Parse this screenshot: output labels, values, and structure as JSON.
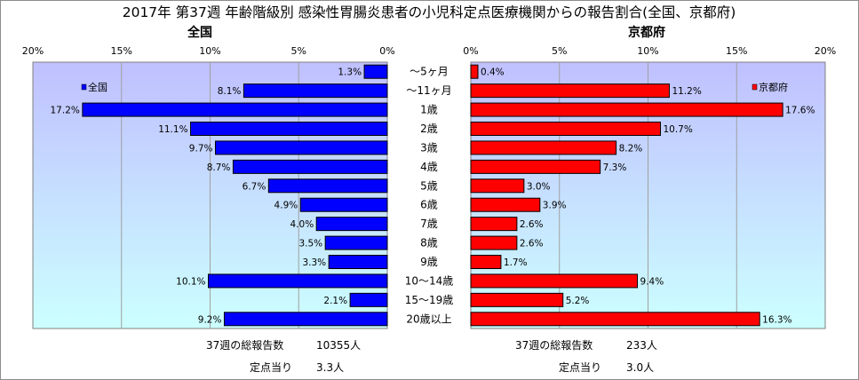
{
  "title": "2017年 第37週 年齢階級別 感染性胃腸炎患者の小児科定点医療機関からの報告割合(全国、京都府)",
  "categories": [
    "～5ヶ月",
    "～11ヶ月",
    "1歳",
    "2歳",
    "3歳",
    "4歳",
    "5歳",
    "6歳",
    "7歳",
    "8歳",
    "9歳",
    "10～14歳",
    "15～19歳",
    "20歳以上"
  ],
  "colors": {
    "nation": "#0000ff",
    "kyoto": "#ff0000",
    "plot_bg_top": "#c0c0ff",
    "plot_bg_bottom": "#ccffff"
  },
  "chart_data": [
    {
      "type": "bar",
      "title": "全国",
      "orientation": "horizontal",
      "direction": "reversed",
      "categories": [
        "～5ヶ月",
        "～11ヶ月",
        "1歳",
        "2歳",
        "3歳",
        "4歳",
        "5歳",
        "6歳",
        "7歳",
        "8歳",
        "9歳",
        "10～14歳",
        "15～19歳",
        "20歳以上"
      ],
      "series": [
        {
          "name": "全国",
          "values": [
            1.3,
            8.1,
            17.2,
            11.1,
            9.7,
            8.7,
            6.7,
            4.9,
            4.0,
            3.5,
            3.3,
            10.1,
            2.1,
            9.2
          ]
        }
      ],
      "value_labels": [
        "1.3%",
        "8.1%",
        "17.2%",
        "11.1%",
        "9.7%",
        "8.7%",
        "6.7%",
        "4.9%",
        "4.0%",
        "3.5%",
        "3.3%",
        "10.1%",
        "2.1%",
        "9.2%"
      ],
      "xlim": [
        0,
        20
      ],
      "ticks": [
        "20%",
        "15%",
        "10%",
        "5%",
        "0%"
      ],
      "grid": true,
      "legend": "top-left"
    },
    {
      "type": "bar",
      "title": "京都府",
      "orientation": "horizontal",
      "categories": [
        "～5ヶ月",
        "～11ヶ月",
        "1歳",
        "2歳",
        "3歳",
        "4歳",
        "5歳",
        "6歳",
        "7歳",
        "8歳",
        "9歳",
        "10～14歳",
        "15～19歳",
        "20歳以上"
      ],
      "series": [
        {
          "name": "京都府",
          "values": [
            0.4,
            11.2,
            17.6,
            10.7,
            8.2,
            7.3,
            3.0,
            3.9,
            2.6,
            2.6,
            1.7,
            9.4,
            5.2,
            16.3
          ]
        }
      ],
      "value_labels": [
        "0.4%",
        "11.2%",
        "17.6%",
        "10.7%",
        "8.2%",
        "7.3%",
        "3.0%",
        "3.9%",
        "2.6%",
        "2.6%",
        "1.7%",
        "9.4%",
        "5.2%",
        "16.3%"
      ],
      "xlim": [
        0,
        20
      ],
      "ticks": [
        "0%",
        "5%",
        "10%",
        "15%",
        "20%"
      ],
      "grid": true,
      "legend": "top-right"
    }
  ],
  "footer": {
    "nation_total_label": "37週の総報告数",
    "nation_total_value": "10355人",
    "nation_per_label": "定点当り",
    "nation_per_value": "3.3人",
    "kyoto_total_label": "37週の総報告数",
    "kyoto_total_value": "233人",
    "kyoto_per_label": "定点当り",
    "kyoto_per_value": "3.0人"
  }
}
